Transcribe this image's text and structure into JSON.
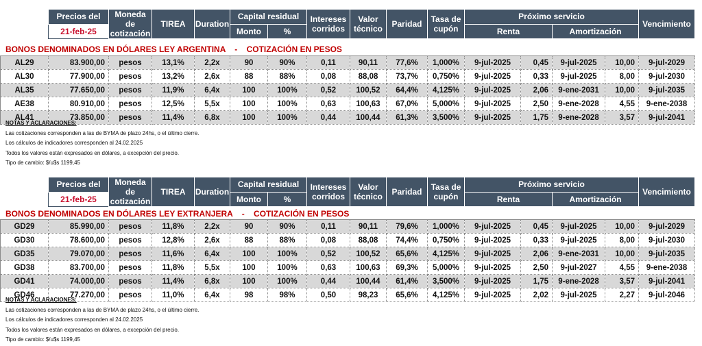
{
  "header": {
    "precios_del": "Precios del",
    "date": "21-feb-25",
    "moneda": "Moneda de cotización",
    "tirea": "TIREA",
    "duration": "Duration",
    "capital_residual": "Capital residual",
    "monto": "Monto",
    "pct": "%",
    "intereses": "Intereses corridos",
    "valor_tecnico": "Valor técnico",
    "paridad": "Paridad",
    "tasa_cupon": "Tasa de cupón",
    "proximo_servicio": "Próximo servicio",
    "renta": "Renta",
    "amortizacion": "Amortización",
    "vencimiento": "Vencimiento"
  },
  "sections": [
    {
      "title": "BONOS DENOMINADOS EN DÓLARES LEY ARGENTINA    -    COTIZACIÓN EN PESOS",
      "rows": [
        [
          "AL29",
          "83.900,00",
          "pesos",
          "13,1%",
          "2,2x",
          "90",
          "90%",
          "0,11",
          "90,11",
          "77,6%",
          "1,000%",
          "9-jul-2025",
          "0,45",
          "9-jul-2025",
          "10,00",
          "9-jul-2029"
        ],
        [
          "AL30",
          "77.900,00",
          "pesos",
          "13,2%",
          "2,6x",
          "88",
          "88%",
          "0,08",
          "88,08",
          "73,7%",
          "0,750%",
          "9-jul-2025",
          "0,33",
          "9-jul-2025",
          "8,00",
          "9-jul-2030"
        ],
        [
          "AL35",
          "77.650,00",
          "pesos",
          "11,9%",
          "6,4x",
          "100",
          "100%",
          "0,52",
          "100,52",
          "64,4%",
          "4,125%",
          "9-jul-2025",
          "2,06",
          "9-ene-2031",
          "10,00",
          "9-jul-2035"
        ],
        [
          "AE38",
          "80.910,00",
          "pesos",
          "12,5%",
          "5,5x",
          "100",
          "100%",
          "0,63",
          "100,63",
          "67,0%",
          "5,000%",
          "9-jul-2025",
          "2,50",
          "9-ene-2028",
          "4,55",
          "9-ene-2038"
        ],
        [
          "AL41",
          "73.850,00",
          "pesos",
          "11,4%",
          "6,8x",
          "100",
          "100%",
          "0,44",
          "100,44",
          "61,3%",
          "3,500%",
          "9-jul-2025",
          "1,75",
          "9-ene-2028",
          "3,57",
          "9-jul-2041"
        ]
      ]
    },
    {
      "title": "BONOS DENOMINADOS EN DÓLARES LEY EXTRANJERA    -    COTIZACIÓN EN PESOS",
      "rows": [
        [
          "GD29",
          "85.990,00",
          "pesos",
          "11,8%",
          "2,2x",
          "90",
          "90%",
          "0,11",
          "90,11",
          "79,6%",
          "1,000%",
          "9-jul-2025",
          "0,45",
          "9-jul-2025",
          "10,00",
          "9-jul-2029"
        ],
        [
          "GD30",
          "78.600,00",
          "pesos",
          "12,8%",
          "2,6x",
          "88",
          "88%",
          "0,08",
          "88,08",
          "74,4%",
          "0,750%",
          "9-jul-2025",
          "0,33",
          "9-jul-2025",
          "8,00",
          "9-jul-2030"
        ],
        [
          "GD35",
          "79.070,00",
          "pesos",
          "11,6%",
          "6,4x",
          "100",
          "100%",
          "0,52",
          "100,52",
          "65,6%",
          "4,125%",
          "9-jul-2025",
          "2,06",
          "9-ene-2031",
          "10,00",
          "9-jul-2035"
        ],
        [
          "GD38",
          "83.700,00",
          "pesos",
          "11,8%",
          "5,5x",
          "100",
          "100%",
          "0,63",
          "100,63",
          "69,3%",
          "5,000%",
          "9-jul-2025",
          "2,50",
          "9-jul-2027",
          "4,55",
          "9-ene-2038"
        ],
        [
          "GD41",
          "74.000,00",
          "pesos",
          "11,4%",
          "6,8x",
          "100",
          "100%",
          "0,44",
          "100,44",
          "61,4%",
          "3,500%",
          "9-jul-2025",
          "1,75",
          "9-ene-2028",
          "3,57",
          "9-jul-2041"
        ],
        [
          "GD46",
          "77.270,00",
          "pesos",
          "11,0%",
          "6,4x",
          "98",
          "98%",
          "0,50",
          "98,23",
          "65,6%",
          "4,125%",
          "9-jul-2025",
          "2,02",
          "9-jul-2025",
          "2,27",
          "9-jul-2046"
        ]
      ]
    }
  ],
  "notes": {
    "title": "NOTAS Y ACLARACIONES:",
    "lines": [
      "Las cotizaciones corresponden a las de BYMA de plazo 24hs, o el último cierre.",
      "Los cálculos de indicadores corresponden al 24.02.2025",
      "Todos los valores están expresados en dólares, a excepción del precio.",
      "Tipo de cambio: $/u$s 1199,45"
    ]
  }
}
